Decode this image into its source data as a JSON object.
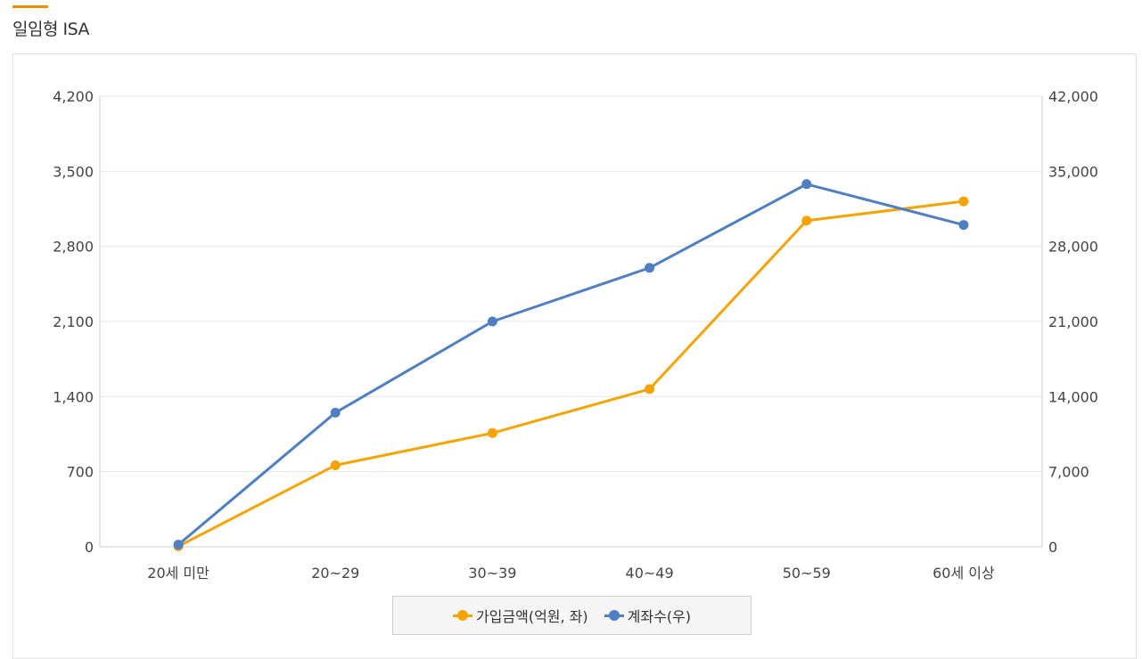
{
  "section": {
    "title": "일임형 ISA",
    "accent_color": "#f08c00"
  },
  "chart_data": {
    "type": "line",
    "categories": [
      "20세 미만",
      "20~29",
      "30~39",
      "40~49",
      "50~59",
      "60세 이상"
    ],
    "series": [
      {
        "name": "가입금액(억원, 좌)",
        "axis": "left",
        "color": "#f5a300",
        "values": [
          5,
          760,
          1060,
          1470,
          3040,
          3220
        ]
      },
      {
        "name": "계좌수(우)",
        "axis": "right",
        "color": "#4f7fc2",
        "values": [
          200,
          12500,
          21000,
          26000,
          33800,
          30000
        ]
      }
    ],
    "y_left": {
      "min": 0,
      "max": 4200,
      "ticks": [
        0,
        700,
        1400,
        2100,
        2800,
        3500,
        4200
      ],
      "tick_labels": [
        "0",
        "700",
        "1,400",
        "2,100",
        "2,800",
        "3,500",
        "4,200"
      ]
    },
    "y_right": {
      "min": 0,
      "max": 42000,
      "ticks": [
        0,
        7000,
        14000,
        21000,
        28000,
        35000,
        42000
      ],
      "tick_labels": [
        "0",
        "7,000",
        "14,000",
        "21,000",
        "28,000",
        "35,000",
        "42,000"
      ]
    },
    "grid": true,
    "legend_position": "bottom-center"
  }
}
